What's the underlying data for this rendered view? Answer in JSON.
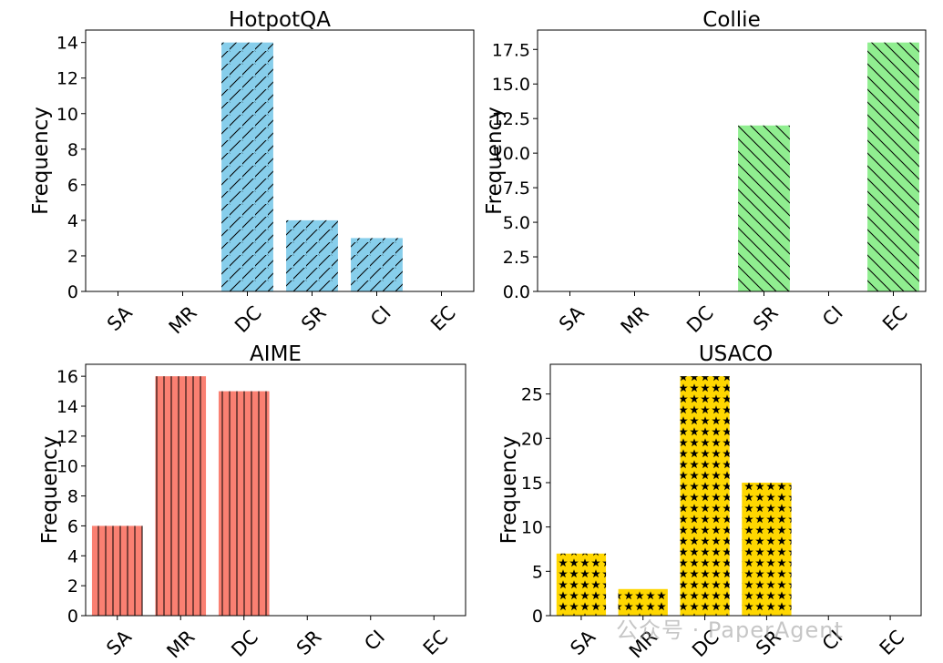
{
  "chart_data": [
    {
      "type": "bar",
      "title": "HotpotQA",
      "categories": [
        "SA",
        "MR",
        "DC",
        "SR",
        "CI",
        "EC"
      ],
      "values": [
        0,
        0,
        14,
        4,
        3,
        0
      ],
      "ylabel": "Frequency",
      "ylim": [
        0,
        14.7
      ],
      "yticks": [
        "0",
        "2",
        "4",
        "6",
        "8",
        "10",
        "12",
        "14"
      ],
      "ytick_values": [
        0,
        2,
        4,
        6,
        8,
        10,
        12,
        14
      ],
      "color": "#87CEEB",
      "hatch": "forward-diagonal"
    },
    {
      "type": "bar",
      "title": "Collie",
      "categories": [
        "SA",
        "MR",
        "DC",
        "SR",
        "CI",
        "EC"
      ],
      "values": [
        0,
        0,
        0,
        12,
        0,
        18
      ],
      "ylabel": "Frequency",
      "ylim": [
        0,
        18.9
      ],
      "yticks": [
        "0.0",
        "2.5",
        "5.0",
        "7.5",
        "10.0",
        "12.5",
        "15.0",
        "17.5"
      ],
      "ytick_values": [
        0,
        2.5,
        5,
        7.5,
        10,
        12.5,
        15,
        17.5
      ],
      "color": "#90EE90",
      "hatch": "back-diagonal"
    },
    {
      "type": "bar",
      "title": "AIME",
      "categories": [
        "SA",
        "MR",
        "DC",
        "SR",
        "CI",
        "EC"
      ],
      "values": [
        6,
        16,
        15,
        0,
        0,
        0
      ],
      "ylabel": "Frequency",
      "ylim": [
        0,
        16.8
      ],
      "yticks": [
        "0",
        "2",
        "4",
        "6",
        "8",
        "10",
        "12",
        "14",
        "16"
      ],
      "ytick_values": [
        0,
        2,
        4,
        6,
        8,
        10,
        12,
        14,
        16
      ],
      "color": "#FA8072",
      "hatch": "vertical"
    },
    {
      "type": "bar",
      "title": "USACO",
      "categories": [
        "SA",
        "MR",
        "DC",
        "SR",
        "CI",
        "EC"
      ],
      "values": [
        7,
        3,
        27,
        15,
        0,
        0
      ],
      "ylabel": "Frequency",
      "ylim": [
        0,
        28.35
      ],
      "yticks": [
        "0",
        "5",
        "10",
        "15",
        "20",
        "25"
      ],
      "ytick_values": [
        0,
        5,
        10,
        15,
        20,
        25
      ],
      "color": "#FFD700",
      "hatch": "stars"
    }
  ],
  "watermark": "公众号 · PaperAgent"
}
